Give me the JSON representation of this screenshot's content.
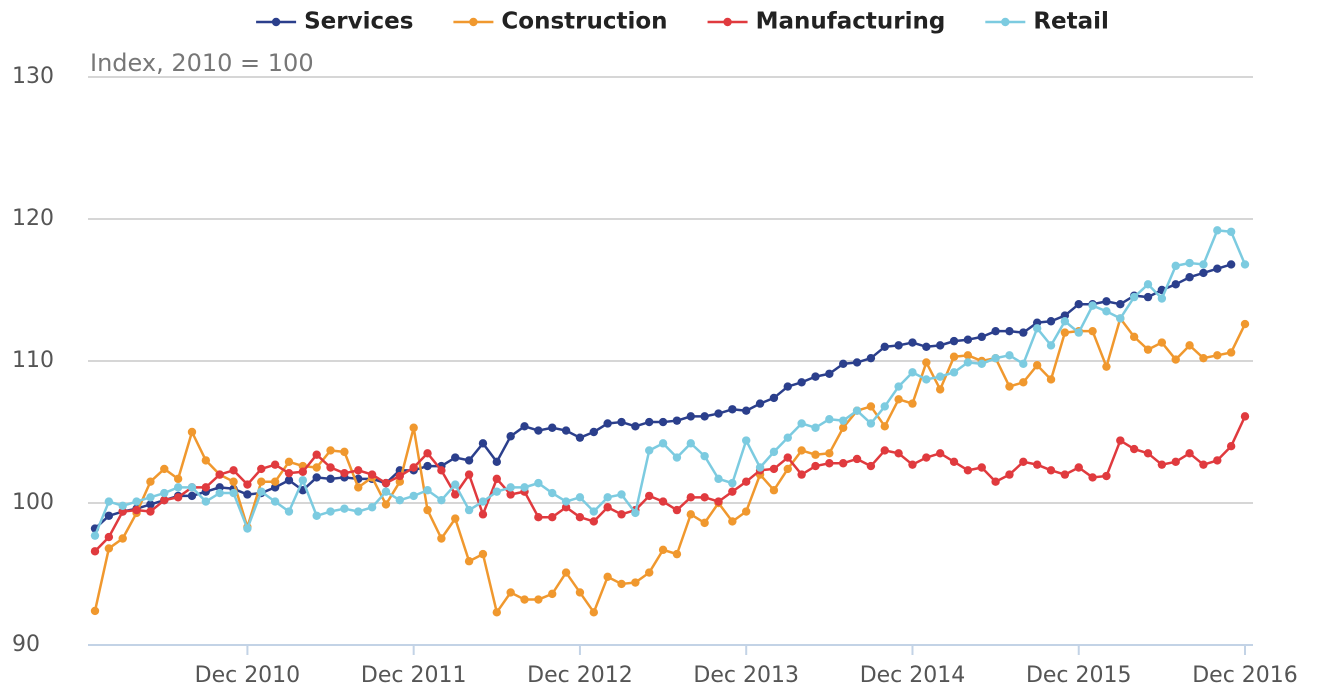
{
  "chart_data": {
    "type": "line",
    "subtitle": "Index, 2010 = 100",
    "categories": [
      null,
      null,
      null,
      null,
      null,
      null,
      null,
      null,
      null,
      null,
      null,
      "Dec 2010",
      null,
      null,
      null,
      null,
      null,
      null,
      null,
      null,
      null,
      null,
      null,
      "Dec 2011",
      null,
      null,
      null,
      null,
      null,
      null,
      null,
      null,
      null,
      null,
      null,
      "Dec 2012",
      null,
      null,
      null,
      null,
      null,
      null,
      null,
      null,
      null,
      null,
      null,
      "Dec 2013",
      null,
      null,
      null,
      null,
      null,
      null,
      null,
      null,
      null,
      null,
      null,
      "Dec 2014",
      null,
      null,
      null,
      null,
      null,
      null,
      null,
      null,
      null,
      null,
      null,
      "Dec 2015",
      null,
      null,
      null,
      null,
      null,
      null,
      null,
      null,
      null,
      null,
      null,
      "Dec 2016"
    ],
    "ylim": [
      90,
      130
    ],
    "yticks": [
      90,
      100,
      110,
      120,
      130
    ],
    "grid": true,
    "legend": "top",
    "series": [
      {
        "name": "Services",
        "color": "#2b3f8c",
        "values": [
          98.2,
          99.1,
          99.4,
          99.6,
          99.9,
          100.2,
          100.5,
          100.5,
          100.8,
          101.1,
          101.0,
          100.6,
          100.7,
          101.1,
          101.6,
          100.9,
          101.8,
          101.7,
          101.8,
          101.7,
          101.7,
          101.4,
          102.3,
          102.3,
          102.6,
          102.6,
          103.2,
          103.0,
          104.2,
          102.9,
          104.7,
          105.4,
          105.1,
          105.3,
          105.1,
          104.6,
          105.0,
          105.6,
          105.7,
          105.4,
          105.7,
          105.7,
          105.8,
          106.1,
          106.1,
          106.3,
          106.6,
          106.5,
          107.0,
          107.4,
          108.2,
          108.5,
          108.9,
          109.1,
          109.8,
          109.9,
          110.2,
          111.0,
          111.1,
          111.3,
          111.0,
          111.1,
          111.4,
          111.5,
          111.7,
          112.1,
          112.1,
          112.0,
          112.7,
          112.8,
          113.2,
          114.0,
          114.0,
          114.2,
          114.0,
          114.6,
          114.5,
          115.0,
          115.4,
          115.9,
          116.2,
          116.5,
          116.8,
          null
        ]
      },
      {
        "name": "Construction",
        "color": "#f0982e",
        "values": [
          92.4,
          96.8,
          97.5,
          99.3,
          101.5,
          102.4,
          101.7,
          105.0,
          103.0,
          102.0,
          101.5,
          98.3,
          101.5,
          101.5,
          102.9,
          102.6,
          102.5,
          103.7,
          103.6,
          101.1,
          101.8,
          99.9,
          101.5,
          105.3,
          99.5,
          97.5,
          98.9,
          95.9,
          96.4,
          92.3,
          93.7,
          93.2,
          93.2,
          93.6,
          95.1,
          93.7,
          92.3,
          94.8,
          94.3,
          94.4,
          95.1,
          96.7,
          96.4,
          99.2,
          98.6,
          100.0,
          98.7,
          99.4,
          102.0,
          100.9,
          102.4,
          103.7,
          103.4,
          103.5,
          105.3,
          106.5,
          106.8,
          105.4,
          107.3,
          107.0,
          109.9,
          108.0,
          110.3,
          110.4,
          110.0,
          110.2,
          108.2,
          108.5,
          109.7,
          108.7,
          112.0,
          112.1,
          112.1,
          109.6,
          113.0,
          111.7,
          110.8,
          111.3,
          110.1,
          111.1,
          110.2,
          110.4,
          110.6,
          112.6
        ]
      },
      {
        "name": "Manufacturing",
        "color": "#e03a3e",
        "values": [
          96.6,
          97.6,
          99.4,
          99.5,
          99.4,
          100.2,
          100.4,
          101.1,
          101.1,
          102.0,
          102.3,
          101.3,
          102.4,
          102.7,
          102.1,
          102.2,
          103.4,
          102.5,
          102.1,
          102.3,
          102.0,
          101.4,
          101.9,
          102.5,
          103.5,
          102.3,
          100.6,
          102.0,
          99.2,
          101.7,
          100.6,
          100.8,
          99.0,
          99.0,
          99.7,
          99.0,
          98.7,
          99.7,
          99.2,
          99.5,
          100.5,
          100.1,
          99.5,
          100.4,
          100.4,
          100.1,
          100.8,
          101.5,
          102.3,
          102.4,
          103.2,
          102.0,
          102.6,
          102.8,
          102.8,
          103.1,
          102.6,
          103.7,
          103.5,
          102.7,
          103.2,
          103.5,
          102.9,
          102.3,
          102.5,
          101.5,
          102.0,
          102.9,
          102.7,
          102.3,
          102.0,
          102.5,
          101.8,
          101.9,
          104.4,
          103.8,
          103.5,
          102.7,
          102.9,
          103.5,
          102.7,
          103.0,
          104.0,
          106.1
        ]
      },
      {
        "name": "Retail",
        "color": "#7ccbe0",
        "values": [
          97.7,
          100.1,
          99.8,
          100.1,
          100.4,
          100.7,
          101.1,
          101.1,
          100.1,
          100.7,
          100.7,
          98.2,
          100.8,
          100.1,
          99.4,
          101.6,
          99.1,
          99.4,
          99.6,
          99.4,
          99.7,
          100.8,
          100.2,
          100.5,
          100.9,
          100.2,
          101.3,
          99.5,
          100.1,
          100.8,
          101.1,
          101.1,
          101.4,
          100.7,
          100.1,
          100.4,
          99.4,
          100.4,
          100.6,
          99.3,
          103.7,
          104.2,
          103.2,
          104.2,
          103.3,
          101.7,
          101.4,
          104.4,
          102.5,
          103.6,
          104.6,
          105.6,
          105.3,
          105.9,
          105.8,
          106.5,
          105.6,
          106.8,
          108.2,
          109.2,
          108.7,
          108.9,
          109.2,
          109.9,
          109.8,
          110.2,
          110.4,
          109.8,
          112.3,
          111.1,
          112.8,
          112.0,
          113.9,
          113.5,
          113.0,
          114.5,
          115.4,
          114.4,
          116.7,
          116.9,
          116.8,
          119.2,
          119.1,
          116.8
        ]
      }
    ]
  }
}
